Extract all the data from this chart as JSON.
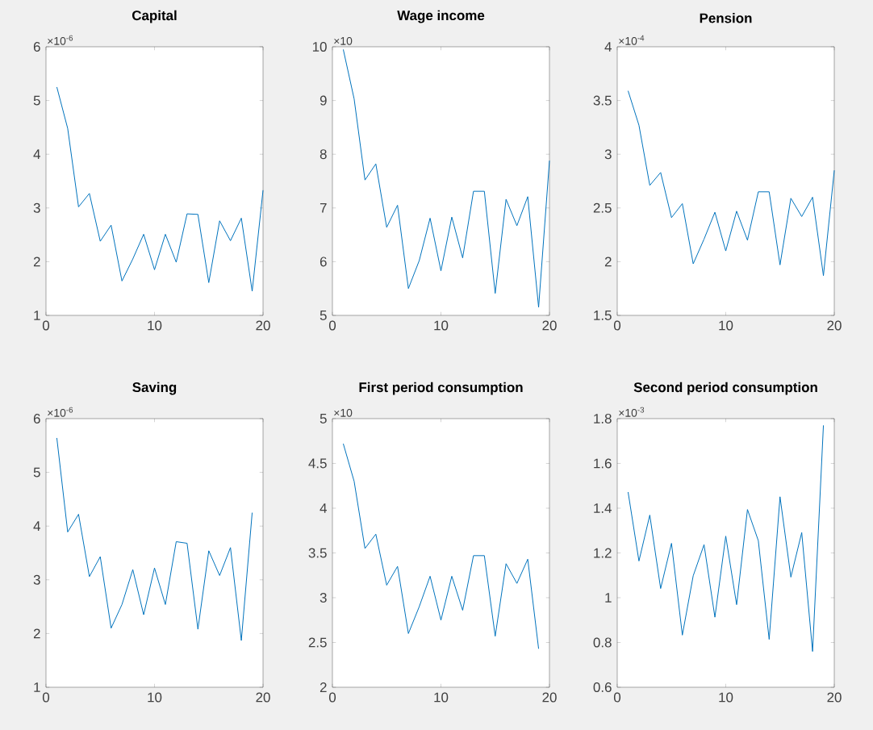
{
  "chart_data": [
    {
      "type": "line",
      "title": "Capital",
      "annotations": [
        "×10$^{-6}$"
      ],
      "color": "#0072bd",
      "x": [
        1,
        2,
        3,
        4,
        5,
        6,
        7,
        8,
        9,
        10,
        11,
        12,
        13,
        14,
        15,
        16,
        17,
        18,
        19,
        20
      ],
      "values": [
        5.25,
        4.48,
        3.02,
        3.27,
        2.38,
        2.68,
        1.64,
        2.05,
        2.51,
        1.85,
        2.51,
        1.99,
        2.89,
        2.88,
        1.61,
        2.76,
        2.39,
        2.81,
        1.45,
        3.33
      ],
      "xlim": [
        0,
        20
      ],
      "xticks": [
        0,
        10,
        20
      ],
      "ylim": [
        1,
        6
      ],
      "yticks": [
        1,
        2,
        3,
        4,
        5,
        6
      ]
    },
    {
      "type": "line",
      "title": "Wage income",
      "annotations": [
        "×10"
      ],
      "color": "#0072bd",
      "x": [
        1,
        2,
        3,
        4,
        5,
        6,
        7,
        8,
        9,
        10,
        11,
        12,
        13,
        14,
        15,
        16,
        17,
        18,
        19,
        20
      ],
      "values": [
        9.95,
        9.03,
        7.52,
        7.82,
        6.64,
        7.05,
        5.5,
        6.02,
        6.81,
        5.83,
        6.83,
        6.07,
        7.31,
        7.31,
        5.41,
        7.16,
        6.67,
        7.21,
        5.15,
        7.88
      ],
      "xlim": [
        0,
        20
      ],
      "xticks": [
        0,
        10,
        20
      ],
      "ylim": [
        5,
        10
      ],
      "yticks": [
        5,
        6,
        7,
        8,
        9,
        10
      ]
    },
    {
      "type": "line",
      "title": "Pension",
      "annotations": [
        "×10$^{-4}$"
      ],
      "color": "#0072bd",
      "x": [
        1,
        2,
        3,
        4,
        5,
        6,
        7,
        8,
        9,
        10,
        11,
        12,
        13,
        14,
        15,
        16,
        17,
        18,
        19,
        20
      ],
      "values": [
        3.59,
        3.27,
        2.71,
        2.83,
        2.41,
        2.54,
        1.98,
        2.21,
        2.46,
        2.1,
        2.47,
        2.2,
        2.65,
        2.65,
        1.97,
        2.59,
        2.42,
        2.6,
        1.87,
        2.85
      ],
      "xlim": [
        0,
        20
      ],
      "xticks": [
        0,
        10,
        20
      ],
      "ylim": [
        1.5,
        4
      ],
      "yticks": [
        1.5,
        2,
        2.5,
        3,
        3.5,
        4
      ]
    },
    {
      "type": "line",
      "title": "Saving",
      "annotations": [
        "×10$^{-6}$"
      ],
      "color": "#0072bd",
      "x": [
        1,
        2,
        3,
        4,
        5,
        6,
        7,
        8,
        9,
        10,
        11,
        12,
        13,
        14,
        15,
        16,
        17,
        18,
        19
      ],
      "values": [
        5.64,
        3.89,
        4.22,
        3.06,
        3.43,
        2.1,
        2.54,
        3.19,
        2.35,
        3.22,
        2.54,
        3.71,
        3.68,
        2.08,
        3.54,
        3.08,
        3.6,
        1.87,
        4.25
      ],
      "xlim": [
        0,
        20
      ],
      "xticks": [
        0,
        10,
        20
      ],
      "ylim": [
        1,
        6
      ],
      "yticks": [
        1,
        2,
        3,
        4,
        5,
        6
      ]
    },
    {
      "type": "line",
      "title": "First period consumption",
      "annotations": [
        "×10"
      ],
      "color": "#0072bd",
      "x": [
        1,
        2,
        3,
        4,
        5,
        6,
        7,
        8,
        9,
        10,
        11,
        12,
        13,
        14,
        15,
        16,
        17,
        18,
        19
      ],
      "values": [
        4.72,
        4.3,
        3.55,
        3.71,
        3.14,
        3.35,
        2.6,
        2.9,
        3.24,
        2.75,
        3.24,
        2.86,
        3.47,
        3.47,
        2.57,
        3.38,
        3.16,
        3.43,
        2.43
      ],
      "xlim": [
        0,
        20
      ],
      "xticks": [
        0,
        10,
        20
      ],
      "ylim": [
        2,
        5
      ],
      "yticks": [
        2,
        2.5,
        3,
        3.5,
        4,
        4.5,
        5
      ]
    },
    {
      "type": "line",
      "title": "Second period consumption",
      "annotations": [
        "×10$^{-3}$"
      ],
      "color": "#0072bd",
      "x": [
        1,
        2,
        3,
        4,
        5,
        6,
        7,
        8,
        9,
        10,
        11,
        12,
        13,
        14,
        15,
        16,
        17,
        18,
        19
      ],
      "values": [
        1.472,
        1.164,
        1.369,
        1.041,
        1.243,
        0.833,
        1.098,
        1.237,
        0.913,
        1.275,
        0.969,
        1.394,
        1.255,
        0.814,
        1.451,
        1.092,
        1.291,
        0.76,
        1.77
      ],
      "xlim": [
        0,
        20
      ],
      "xticks": [
        0,
        10,
        20
      ],
      "ylim": [
        0.6,
        1.8
      ],
      "yticks": [
        0.6,
        0.8,
        1,
        1.2,
        1.4,
        1.6,
        1.8
      ]
    }
  ]
}
